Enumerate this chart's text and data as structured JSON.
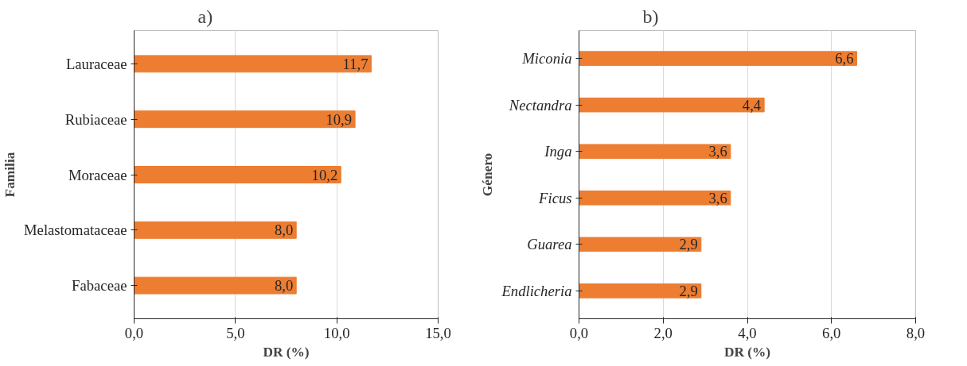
{
  "chart_data": [
    {
      "type": "bar",
      "orientation": "horizontal",
      "title": "a)",
      "xlabel": "DR (%)",
      "ylabel": "Familia",
      "categories": [
        "Lauraceae",
        "Rubiaceae",
        "Moraceae",
        "Melastomataceae",
        "Fabaceae"
      ],
      "values": [
        11.7,
        10.9,
        10.2,
        8.0,
        8.0
      ],
      "color": "#ed7d31",
      "value_labels": [
        "11,7",
        "10,9",
        "10,2",
        "8,0",
        "8,0"
      ],
      "xlim": [
        0,
        15
      ],
      "xticks": [
        {
          "value": 0,
          "label": "0,0"
        },
        {
          "value": 5,
          "label": "5,0"
        },
        {
          "value": 10,
          "label": "10,0"
        },
        {
          "value": 15,
          "label": "15,0"
        }
      ],
      "grid": "x"
    },
    {
      "type": "bar",
      "orientation": "horizontal",
      "title": "b)",
      "xlabel": "DR (%)",
      "ylabel": "Género",
      "categories": [
        "Miconia",
        "Nectandra",
        "Inga",
        "Ficus",
        "Guarea",
        "Endlicheria"
      ],
      "values": [
        6.6,
        4.4,
        3.6,
        3.6,
        2.9,
        2.9
      ],
      "color": "#ed7d31",
      "value_labels": [
        "6,6",
        "4,4",
        "3,6",
        "3,6",
        "2,9",
        "2,9"
      ],
      "xlim": [
        0,
        8
      ],
      "xticks": [
        {
          "value": 0,
          "label": "0,0"
        },
        {
          "value": 2,
          "label": "2,0"
        },
        {
          "value": 4,
          "label": "4,0"
        },
        {
          "value": 6,
          "label": "6,0"
        },
        {
          "value": 8,
          "label": "8,0"
        }
      ],
      "grid": "x"
    }
  ]
}
